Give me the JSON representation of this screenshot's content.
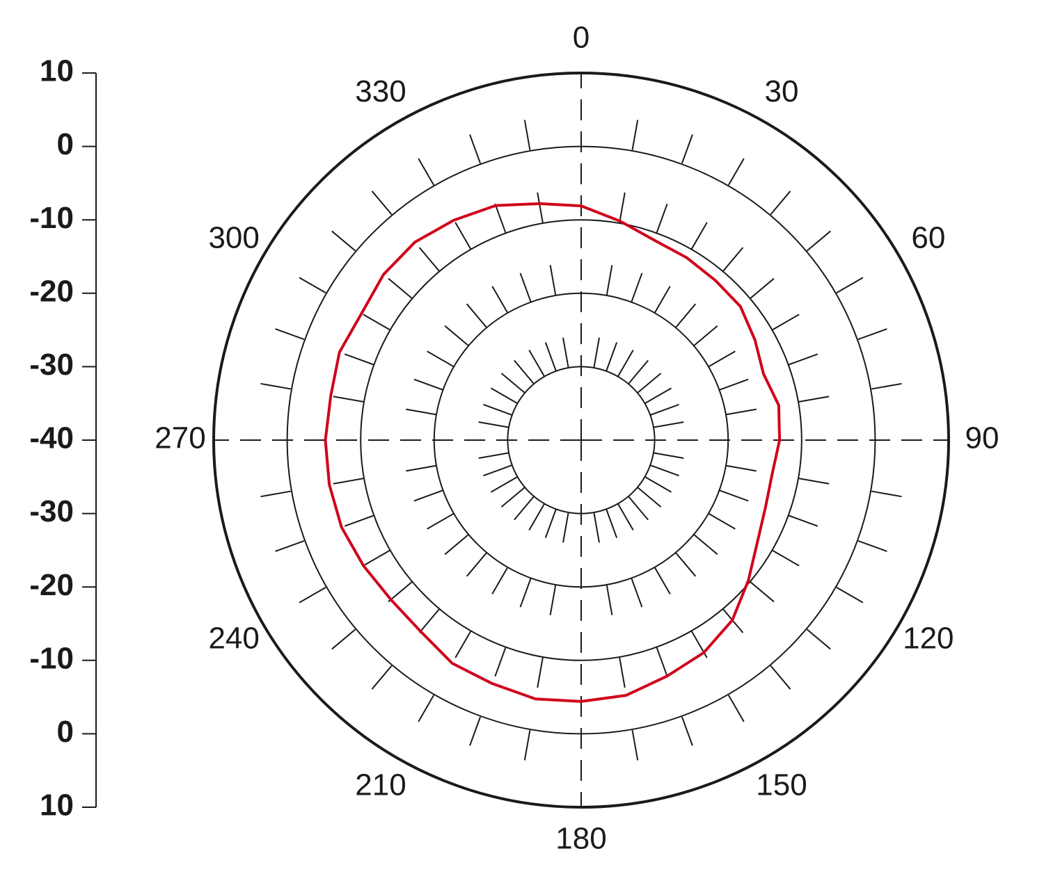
{
  "chart_data": {
    "type": "polar",
    "theta": [
      0,
      10,
      20,
      30,
      40,
      50,
      60,
      70,
      80,
      90,
      100,
      110,
      120,
      130,
      140,
      150,
      160,
      170,
      180,
      190,
      200,
      210,
      220,
      230,
      240,
      250,
      260,
      270,
      280,
      290,
      300,
      310,
      320,
      330,
      340,
      350
    ],
    "values": [
      -8.1,
      -9.7,
      -11.0,
      -11.3,
      -11.6,
      -11.7,
      -12.7,
      -13.6,
      -12.7,
      -13.0,
      -13.6,
      -13.3,
      -12.3,
      -10.3,
      -8.0,
      -6.6,
      -5.8,
      -4.7,
      -4.4,
      -4.2,
      -4.7,
      -4.9,
      -6.0,
      -6.2,
      -5.8,
      -5.3,
      -5.2,
      -5.2,
      -5.4,
      -5.0,
      -5.5,
      -4.9,
      -4.8,
      -5.4,
      -6.0,
      -7.3
    ],
    "color": "#d0021b",
    "rlim": [
      -40,
      10
    ],
    "rticks": [
      -40,
      -30,
      -20,
      -10,
      0,
      10
    ],
    "thetaticks": [
      0,
      30,
      60,
      90,
      120,
      150,
      180,
      210,
      240,
      270,
      300,
      330
    ],
    "direction": "clockwise",
    "zero": "top"
  }
}
